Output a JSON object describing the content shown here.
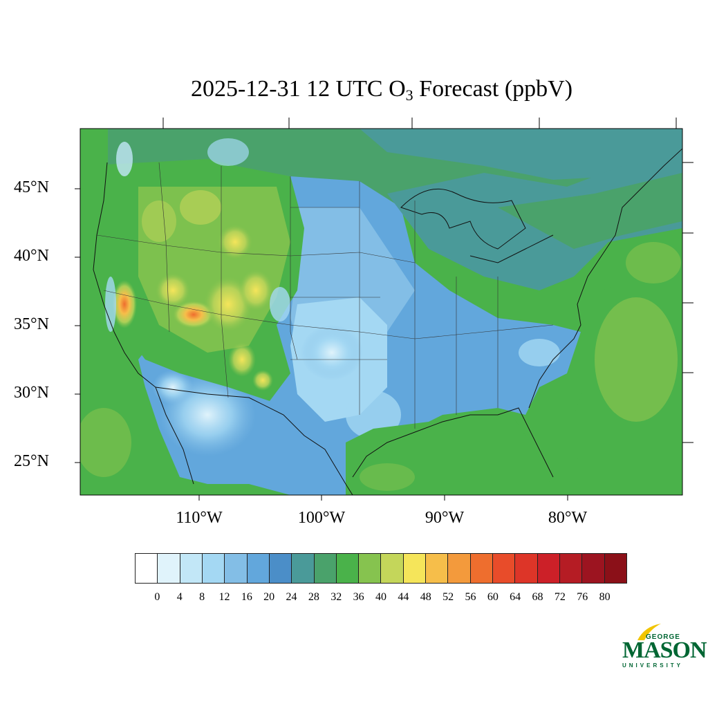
{
  "title": {
    "prefix": "2025-12-31 12 UTC O",
    "subscript": "3",
    "suffix": " Forecast (ppbV)"
  },
  "latitude_labels": [
    "45°N",
    "40°N",
    "35°N",
    "30°N",
    "25°N"
  ],
  "longitude_labels": [
    "110°W",
    "100°W",
    "90°W",
    "80°W"
  ],
  "colorbar": {
    "labels": [
      "0",
      "4",
      "8",
      "12",
      "16",
      "20",
      "24",
      "28",
      "32",
      "36",
      "40",
      "44",
      "48",
      "52",
      "56",
      "60",
      "64",
      "68",
      "72",
      "76",
      "80"
    ],
    "colors": [
      "#ffffff",
      "#e0f3fb",
      "#c2e7f7",
      "#a4d8f3",
      "#83bee6",
      "#62a7dc",
      "#4b8ec8",
      "#4a9a99",
      "#4aa26b",
      "#4ab24a",
      "#86c34f",
      "#c4d65a",
      "#f5e55a",
      "#f6be4a",
      "#f39a3c",
      "#ee6e2e",
      "#e84c2a",
      "#dd3528",
      "#cc2028",
      "#b51c24",
      "#9c1420",
      "#8b1018"
    ]
  },
  "logo": {
    "george": "GEORGE",
    "mason": "MASON",
    "university": "UNIVERSITY",
    "color": "#006633",
    "accent": "#f2c500"
  },
  "map": {
    "region": "Contiguous United States",
    "background_ocean_color": "#4ab24a",
    "dominant_low_color": "#83bee6",
    "hotspot_color": "#ee6e2e"
  }
}
